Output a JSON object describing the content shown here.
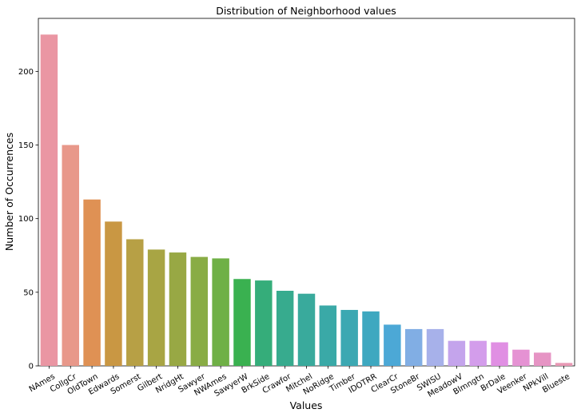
{
  "chart_data": {
    "type": "bar",
    "title": "Distribution of Neighborhood values",
    "xlabel": "Values",
    "ylabel": "Number of Occurrences",
    "categories": [
      "NAmes",
      "CollgCr",
      "OldTown",
      "Edwards",
      "Somerst",
      "Gilbert",
      "NridgHt",
      "Sawyer",
      "NWAmes",
      "SawyerW",
      "BrkSide",
      "Crawfor",
      "Mitchel",
      "NoRidge",
      "Timber",
      "IDOTRR",
      "ClearCr",
      "StoneBr",
      "SWISU",
      "MeadowV",
      "Blmngtn",
      "BrDale",
      "Veenker",
      "NPkVill",
      "Blueste"
    ],
    "values": [
      225,
      150,
      113,
      98,
      86,
      79,
      77,
      74,
      73,
      59,
      58,
      51,
      49,
      41,
      38,
      37,
      28,
      25,
      25,
      17,
      17,
      16,
      11,
      9,
      2
    ],
    "colors": [
      "#ea96a3",
      "#e8988a",
      "#df9154",
      "#c99743",
      "#b7a045",
      "#a8a544",
      "#98a844",
      "#89ac45",
      "#6fb046",
      "#3ab150",
      "#35ad7a",
      "#37ab8e",
      "#39aa9c",
      "#3aa9a7",
      "#3ca8b2",
      "#3ea8c0",
      "#4ca8d6",
      "#81aee4",
      "#a7b1ea",
      "#c4a4ec",
      "#d39deb",
      "#e08fe3",
      "#e592d3",
      "#e694c4",
      "#e899b5"
    ],
    "yticks": [
      0,
      50,
      100,
      150,
      200
    ],
    "ylim": [
      0,
      236
    ],
    "grid": false,
    "legend": "none"
  }
}
